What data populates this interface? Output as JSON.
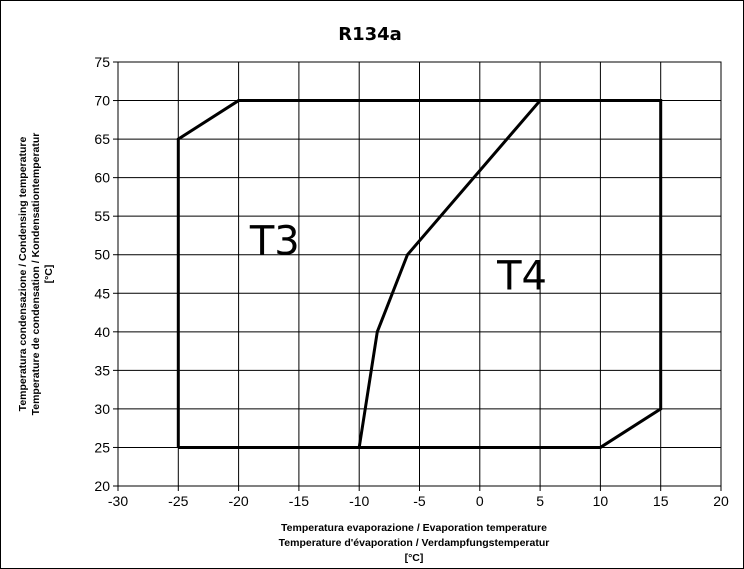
{
  "chart_data": {
    "type": "line",
    "title": "R134a",
    "xlabel": [
      "Temperatura evaporazione / Evaporation temperature",
      "Temperature d'évaporation / Verdampfungstemperatur",
      "[°C]"
    ],
    "ylabel": [
      "Temperatura condensazione / Condensing temperature",
      "Temperature de condensation / Kondensationtemperatur",
      "[°C]"
    ],
    "xlim": [
      -30,
      20
    ],
    "ylim": [
      20,
      75
    ],
    "xticks": [
      -30,
      -25,
      -20,
      -15,
      -10,
      -5,
      0,
      5,
      10,
      15,
      20
    ],
    "yticks": [
      20,
      25,
      30,
      35,
      40,
      45,
      50,
      55,
      60,
      65,
      70,
      75
    ],
    "grid": true,
    "series": [
      {
        "points": [
          [
            -25,
            25
          ],
          [
            -25,
            65
          ],
          [
            -20,
            70
          ],
          [
            15,
            70
          ],
          [
            15,
            30
          ],
          [
            10,
            25
          ],
          [
            -25,
            25
          ]
        ],
        "color": "#000000"
      },
      {
        "points": [
          [
            -10,
            25
          ],
          [
            -8.5,
            40
          ],
          [
            -6,
            50
          ],
          [
            5,
            70
          ]
        ],
        "color": "#000000"
      }
    ],
    "annotations": [
      {
        "text": "T3",
        "x": -17,
        "y": 50
      },
      {
        "text": "T4",
        "x": 3.5,
        "y": 45.5
      }
    ]
  }
}
